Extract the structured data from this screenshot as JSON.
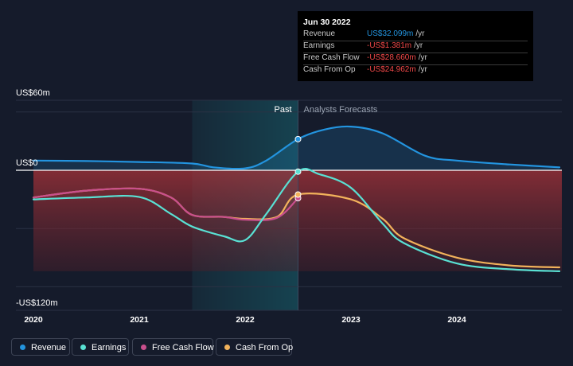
{
  "chart_data": {
    "type": "area",
    "y_axis_labels": {
      "top": "US$60m",
      "zero": "US$0",
      "bottom": "-US$120m"
    },
    "x_ticks": [
      "2020",
      "2021",
      "2022",
      "2023",
      "2024"
    ],
    "section_labels": {
      "past": "Past",
      "forecast": "Analysts Forecasts"
    },
    "ylim": [
      -120,
      60
    ],
    "units": "US$m",
    "highlight_date": 2022.5,
    "shaded_past_start": 2021.5,
    "series": [
      {
        "name": "Revenue",
        "color": "#2394df",
        "points": [
          [
            2020.0,
            10
          ],
          [
            2020.5,
            9.5
          ],
          [
            2021.0,
            8.5
          ],
          [
            2021.5,
            7
          ],
          [
            2021.7,
            3
          ],
          [
            2022.0,
            2
          ],
          [
            2022.2,
            10
          ],
          [
            2022.5,
            32.1
          ],
          [
            2022.75,
            42
          ],
          [
            2023.0,
            45
          ],
          [
            2023.3,
            38
          ],
          [
            2023.7,
            15
          ],
          [
            2024.0,
            10
          ],
          [
            2024.5,
            6
          ],
          [
            2024.97,
            3
          ]
        ]
      },
      {
        "name": "Earnings",
        "color": "#59e1d4",
        "points": [
          [
            2020.0,
            -30
          ],
          [
            2020.5,
            -28
          ],
          [
            2021.0,
            -27.5
          ],
          [
            2021.3,
            -45
          ],
          [
            2021.5,
            -58
          ],
          [
            2021.8,
            -68
          ],
          [
            2022.0,
            -72
          ],
          [
            2022.2,
            -45
          ],
          [
            2022.5,
            -1.4
          ],
          [
            2022.7,
            -4
          ],
          [
            2023.0,
            -18
          ],
          [
            2023.3,
            -55
          ],
          [
            2023.5,
            -75
          ],
          [
            2024.0,
            -96
          ],
          [
            2024.5,
            -102
          ],
          [
            2024.97,
            -104
          ]
        ]
      },
      {
        "name": "Free Cash Flow",
        "color": "#c84f8d",
        "points": [
          [
            2020.0,
            -28
          ],
          [
            2020.5,
            -21
          ],
          [
            2021.0,
            -19
          ],
          [
            2021.3,
            -28
          ],
          [
            2021.5,
            -46
          ],
          [
            2021.8,
            -48
          ],
          [
            2022.0,
            -51
          ],
          [
            2022.3,
            -49
          ],
          [
            2022.5,
            -28.7
          ]
        ]
      },
      {
        "name": "Cash From Op",
        "color": "#f2b25b",
        "points": [
          [
            2020.0,
            -28
          ],
          [
            2020.5,
            -21
          ],
          [
            2021.0,
            -19
          ],
          [
            2021.3,
            -28
          ],
          [
            2021.5,
            -46
          ],
          [
            2021.8,
            -48
          ],
          [
            2022.0,
            -50
          ],
          [
            2022.3,
            -48
          ],
          [
            2022.5,
            -25
          ],
          [
            2023.0,
            -30
          ],
          [
            2023.3,
            -50
          ],
          [
            2023.5,
            -70
          ],
          [
            2024.0,
            -90
          ],
          [
            2024.5,
            -98
          ],
          [
            2024.97,
            -100
          ]
        ]
      }
    ],
    "tooltip": {
      "date": "Jun 30 2022",
      "unit": "/yr",
      "rows": [
        {
          "label": "Revenue",
          "value": "US$32.099m",
          "color": "#2394df"
        },
        {
          "label": "Earnings",
          "value": "-US$1.381m",
          "color": "#f04848"
        },
        {
          "label": "Free Cash Flow",
          "value": "-US$28.660m",
          "color": "#f04848"
        },
        {
          "label": "Cash From Op",
          "value": "-US$24.962m",
          "color": "#f04848"
        }
      ]
    },
    "legend": [
      "Revenue",
      "Earnings",
      "Free Cash Flow",
      "Cash From Op"
    ]
  }
}
